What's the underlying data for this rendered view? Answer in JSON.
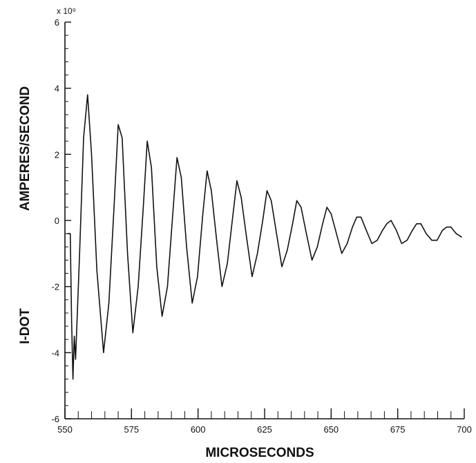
{
  "chart_data": {
    "type": "line",
    "title": "",
    "xlabel": "MICROSECONDS",
    "ylabel": "I-DOT AMPERES/SECOND",
    "ylabel_parts": [
      "I-DOT",
      "AMPERES/SECOND"
    ],
    "y_multiplier": "x 10⁹",
    "xlim": [
      550,
      700
    ],
    "ylim": [
      -6,
      6
    ],
    "x_ticks": [
      550,
      575,
      600,
      625,
      650,
      675,
      700
    ],
    "y_ticks": [
      -6,
      -4,
      -2,
      0,
      2,
      4,
      6
    ],
    "x_tick_labels": [
      "550",
      "575",
      "600",
      "625",
      "650",
      "675",
      "700"
    ],
    "y_tick_labels": [
      "-6",
      "-4",
      "-2",
      "0",
      "2",
      "4",
      "6"
    ],
    "grid": false,
    "line_color": "#111111",
    "series": [
      {
        "x": [
          551.0,
          552.0,
          552.5,
          553.0,
          553.5,
          554.0,
          555.5,
          557.0,
          558.5,
          560.0,
          562.0,
          564.5,
          566.5,
          568.5,
          570.0,
          571.5,
          573.5,
          575.5,
          577.5,
          579.5,
          580.9,
          582.5,
          584.5,
          586.5,
          588.5,
          590.5,
          592.1,
          593.7,
          595.7,
          597.8,
          599.8,
          601.8,
          603.4,
          605.0,
          607.0,
          609.0,
          611.0,
          613.0,
          614.6,
          616.2,
          618.2,
          620.3,
          622.3,
          624.3,
          625.9,
          627.5,
          629.5,
          631.5,
          633.5,
          635.5,
          637.1,
          638.7,
          640.7,
          642.8,
          644.8,
          646.8,
          648.4,
          650.0,
          652.0,
          654.0,
          656.0,
          658.0,
          659.6,
          661.2,
          663.2,
          665.3,
          667.3,
          669.3,
          670.9,
          672.5,
          674.5,
          676.5,
          678.5,
          680.5,
          682.1,
          683.7,
          685.7,
          687.8,
          689.8,
          691.8,
          693.4,
          695.0,
          697.0,
          699.0
        ],
        "y": [
          -0.4,
          -0.4,
          -3.0,
          -4.8,
          -3.5,
          -4.2,
          -1.0,
          2.5,
          3.8,
          2.0,
          -1.5,
          -4.0,
          -2.5,
          0.5,
          2.9,
          2.5,
          -1.0,
          -3.4,
          -2.0,
          0.5,
          2.4,
          1.6,
          -1.4,
          -2.9,
          -2.0,
          0.2,
          1.9,
          1.3,
          -0.8,
          -2.5,
          -1.7,
          0.2,
          1.5,
          0.9,
          -0.6,
          -2.0,
          -1.3,
          0.1,
          1.2,
          0.7,
          -0.5,
          -1.7,
          -1.0,
          0.0,
          0.9,
          0.6,
          -0.4,
          -1.4,
          -0.9,
          -0.1,
          0.6,
          0.4,
          -0.4,
          -1.2,
          -0.8,
          -0.1,
          0.4,
          0.2,
          -0.4,
          -1.0,
          -0.7,
          -0.2,
          0.1,
          0.1,
          -0.3,
          -0.7,
          -0.6,
          -0.3,
          -0.1,
          0.0,
          -0.3,
          -0.7,
          -0.6,
          -0.3,
          -0.1,
          -0.1,
          -0.4,
          -0.6,
          -0.6,
          -0.3,
          -0.2,
          -0.2,
          -0.4,
          -0.5
        ]
      }
    ]
  }
}
